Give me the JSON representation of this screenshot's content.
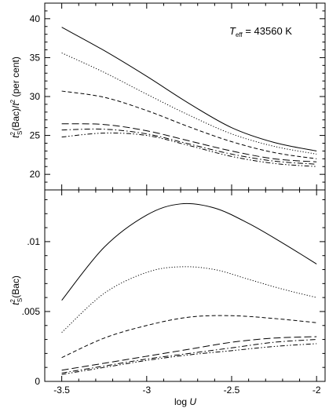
{
  "chart_data": [
    {
      "type": "line",
      "panel": "top",
      "annotation": {
        "symbol": "T",
        "subscript": "eff",
        "text": " = 43560 K"
      },
      "ylabel": {
        "t": "t",
        "sub": "S",
        "sup": "2",
        "mid": "(Bac)/",
        "t2": "t",
        "sup2": "2",
        "tail": " (per cent)"
      },
      "xlim": [
        -3.6,
        -1.95
      ],
      "ylim": [
        18,
        42
      ],
      "y_ticks": [
        20,
        25,
        30,
        35,
        40
      ],
      "y_tick_labels": [
        "20",
        "25",
        "30",
        "35",
        "40"
      ],
      "x_ticks": [
        -3.5,
        -3,
        -2.5,
        -2
      ],
      "grid": false,
      "series": [
        {
          "style": "solid",
          "x": [
            -3.5,
            -3.25,
            -3.0,
            -2.75,
            -2.5,
            -2.25,
            -2.0
          ],
          "y": [
            38.9,
            35.9,
            32.6,
            29.1,
            26.0,
            24.1,
            23.0
          ]
        },
        {
          "style": "dotted",
          "x": [
            -3.5,
            -3.25,
            -3.0,
            -2.75,
            -2.5,
            -2.25,
            -2.0
          ],
          "y": [
            35.6,
            33.1,
            30.3,
            27.6,
            25.2,
            23.6,
            22.6
          ]
        },
        {
          "style": "dashed",
          "x": [
            -3.5,
            -3.25,
            -3.0,
            -2.75,
            -2.5,
            -2.25,
            -2.0
          ],
          "y": [
            30.7,
            29.9,
            28.2,
            26.1,
            24.2,
            22.8,
            22.0
          ]
        },
        {
          "style": "longdash",
          "x": [
            -3.5,
            -3.25,
            -3.0,
            -2.75,
            -2.5,
            -2.25,
            -2.0
          ],
          "y": [
            26.5,
            26.4,
            25.6,
            24.3,
            23.0,
            22.0,
            21.6
          ]
        },
        {
          "style": "dashdot",
          "x": [
            -3.5,
            -3.25,
            -3.0,
            -2.75,
            -2.5,
            -2.25,
            -2.0
          ],
          "y": [
            25.7,
            25.8,
            25.2,
            23.9,
            22.6,
            21.7,
            21.3
          ]
        },
        {
          "style": "dashdotdot",
          "x": [
            -3.5,
            -3.25,
            -3.0,
            -2.75,
            -2.5,
            -2.25,
            -2.0
          ],
          "y": [
            24.8,
            25.3,
            25.0,
            23.7,
            22.3,
            21.4,
            21.0
          ]
        }
      ]
    },
    {
      "type": "line",
      "panel": "bottom",
      "xlabel": {
        "prefix": "log ",
        "var": "U"
      },
      "ylabel": {
        "t": "t",
        "sub": "S",
        "sup": "2",
        "mid": "(Bac)"
      },
      "xlim": [
        -3.6,
        -1.95
      ],
      "ylim": [
        0,
        0.0137
      ],
      "y_ticks": [
        0,
        0.005,
        0.01
      ],
      "y_tick_labels": [
        "0",
        ".005",
        ".01"
      ],
      "x_ticks": [
        -3.5,
        -3,
        -2.5,
        -2
      ],
      "x_tick_labels": [
        "-3.5",
        "-3",
        "-2.5",
        "-2"
      ],
      "grid": false,
      "series": [
        {
          "style": "solid",
          "x": [
            -3.5,
            -3.25,
            -3.0,
            -2.8,
            -2.6,
            -2.4,
            -2.2,
            -2.0
          ],
          "y": [
            0.0058,
            0.0096,
            0.0119,
            0.0127,
            0.0124,
            0.0113,
            0.0099,
            0.0084
          ]
        },
        {
          "style": "dotted",
          "x": [
            -3.5,
            -3.25,
            -3.0,
            -2.8,
            -2.6,
            -2.4,
            -2.2,
            -2.0
          ],
          "y": [
            0.0035,
            0.0063,
            0.0078,
            0.0082,
            0.008,
            0.0073,
            0.0066,
            0.006
          ]
        },
        {
          "style": "dashed",
          "x": [
            -3.5,
            -3.25,
            -3.0,
            -2.75,
            -2.5,
            -2.25,
            -2.0
          ],
          "y": [
            0.0017,
            0.0031,
            0.004,
            0.0046,
            0.0047,
            0.0045,
            0.0042
          ]
        },
        {
          "style": "longdash",
          "x": [
            -3.5,
            -3.25,
            -3.0,
            -2.75,
            -2.5,
            -2.25,
            -2.0
          ],
          "y": [
            0.0008,
            0.0013,
            0.0018,
            0.0023,
            0.0028,
            0.0031,
            0.0032
          ]
        },
        {
          "style": "dashdot",
          "x": [
            -3.5,
            -3.25,
            -3.0,
            -2.75,
            -2.5,
            -2.25,
            -2.0
          ],
          "y": [
            0.0006,
            0.0011,
            0.0016,
            0.002,
            0.0024,
            0.0028,
            0.003
          ]
        },
        {
          "style": "dashdotdot",
          "x": [
            -3.5,
            -3.25,
            -3.0,
            -2.75,
            -2.5,
            -2.25,
            -2.0
          ],
          "y": [
            0.0005,
            0.001,
            0.0015,
            0.0019,
            0.0022,
            0.0025,
            0.0027
          ]
        }
      ]
    }
  ]
}
